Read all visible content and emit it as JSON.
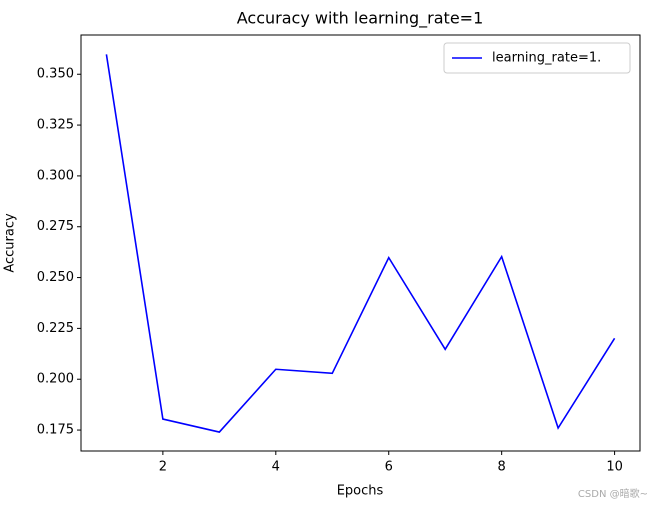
{
  "chart_data": {
    "type": "line",
    "title": "Accuracy with learning_rate=1",
    "xlabel": "Epochs",
    "ylabel": "Accuracy",
    "x": [
      1,
      2,
      3,
      4,
      5,
      6,
      7,
      8,
      9,
      10
    ],
    "series": [
      {
        "name": "learning_rate=1.",
        "color": "#0000ff",
        "values": [
          0.3598,
          0.1804,
          0.174,
          0.2049,
          0.2029,
          0.2598,
          0.2147,
          0.2603,
          0.176,
          0.2201
        ]
      }
    ],
    "xlim": [
      0.55,
      10.45
    ],
    "xticks": [
      2,
      4,
      6,
      8,
      10
    ],
    "ylim": [
      0.1647,
      0.3693
    ],
    "yticks": [
      {
        "value": 0.175,
        "label": "0.175"
      },
      {
        "value": 0.2,
        "label": "0.200"
      },
      {
        "value": 0.225,
        "label": "0.225"
      },
      {
        "value": 0.25,
        "label": "0.250"
      },
      {
        "value": 0.275,
        "label": "0.275"
      },
      {
        "value": 0.3,
        "label": "0.300"
      },
      {
        "value": 0.325,
        "label": "0.325"
      },
      {
        "value": 0.35,
        "label": "0.350"
      }
    ],
    "legend": "upper right",
    "grid": false,
    "watermark": "CSDN @暗歌~"
  }
}
